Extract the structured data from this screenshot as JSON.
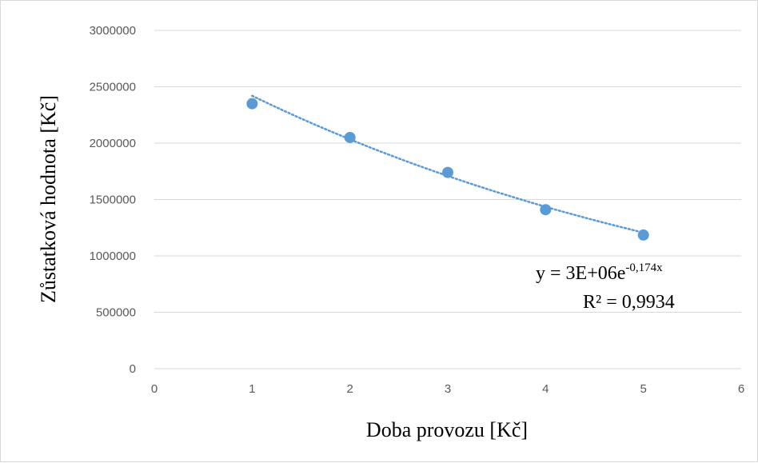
{
  "chart_data": {
    "type": "scatter",
    "x": [
      1,
      2,
      3,
      4,
      5
    ],
    "y": [
      2350000,
      2050000,
      1740000,
      1410000,
      1185000
    ],
    "xlim": [
      0,
      6
    ],
    "ylim": [
      0,
      3000000
    ],
    "xticks": [
      "0",
      "1",
      "2",
      "3",
      "4",
      "5",
      "6"
    ],
    "yticks": [
      "0",
      "500000",
      "1000000",
      "1500000",
      "2000000",
      "2500000",
      "3000000"
    ],
    "xlabel": "Doba provozu [Kč]",
    "ylabel": "Zůstatková hodnota [Kč]",
    "grid": "horizontal",
    "trendline": {
      "type": "exponential",
      "a": 2880000,
      "b": -0.174,
      "equation_prefix": "y = 3E+06e",
      "equation_exponent": "-0,174x",
      "r_squared_label": "R² = 0,9934"
    },
    "colors": {
      "marker": "#5b9bd5",
      "trendline": "#5b9bd5",
      "grid": "#d9d9d9"
    }
  }
}
